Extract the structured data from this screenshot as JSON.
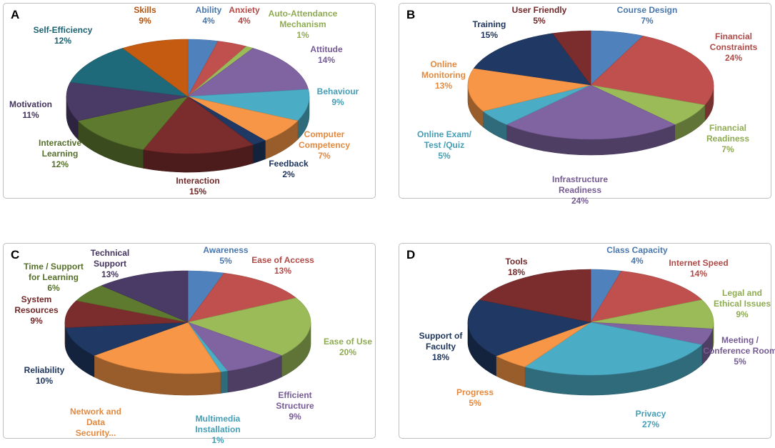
{
  "chart_data": [
    {
      "panel": "A",
      "type": "pie",
      "title": "",
      "slices": [
        {
          "label": "Ability",
          "value": 4,
          "pct": "4%",
          "color": "#4F81BD"
        },
        {
          "label": "Anxiety",
          "value": 4,
          "pct": "4%",
          "color": "#C0504D"
        },
        {
          "label": "Auto-Attendance Mechanism",
          "value": 1,
          "pct": "1%",
          "color": "#9BBB59"
        },
        {
          "label": "Attitude",
          "value": 14,
          "pct": "14%",
          "color": "#8064A2"
        },
        {
          "label": "Behaviour",
          "value": 9,
          "pct": "9%",
          "color": "#4BACC6"
        },
        {
          "label": "Computer Competency",
          "value": 7,
          "pct": "7%",
          "color": "#F79646"
        },
        {
          "label": "Feedback",
          "value": 2,
          "pct": "2%",
          "color": "#1F3864"
        },
        {
          "label": "Interaction",
          "value": 15,
          "pct": "15%",
          "color": "#7B2C2C"
        },
        {
          "label": "Interactive Learning",
          "value": 12,
          "pct": "12%",
          "color": "#5E7A2F"
        },
        {
          "label": "Motivation",
          "value": 11,
          "pct": "11%",
          "color": "#4A3A66"
        },
        {
          "label": "Self-Efficiency",
          "value": 12,
          "pct": "12%",
          "color": "#1E6A7A"
        },
        {
          "label": "Skills",
          "value": 9,
          "pct": "9%",
          "color": "#C55A11"
        }
      ]
    },
    {
      "panel": "B",
      "type": "pie",
      "title": "",
      "slices": [
        {
          "label": "Course Design",
          "value": 7,
          "pct": "7%",
          "color": "#4F81BD"
        },
        {
          "label": "Financial Constraints",
          "value": 24,
          "pct": "24%",
          "color": "#C0504D"
        },
        {
          "label": "Financial Readiness",
          "value": 7,
          "pct": "7%",
          "color": "#9BBB59"
        },
        {
          "label": "Infrastructure Readiness",
          "value": 24,
          "pct": "24%",
          "color": "#8064A2"
        },
        {
          "label": "Online Exam/ Test /Quiz",
          "value": 5,
          "pct": "5%",
          "color": "#4BACC6"
        },
        {
          "label": "Online Monitoring",
          "value": 13,
          "pct": "13%",
          "color": "#F79646"
        },
        {
          "label": "Training",
          "value": 15,
          "pct": "15%",
          "color": "#1F3864"
        },
        {
          "label": "User Friendly",
          "value": 5,
          "pct": "5%",
          "color": "#7B2C2C"
        }
      ]
    },
    {
      "panel": "C",
      "type": "pie",
      "title": "",
      "slices": [
        {
          "label": "Awareness",
          "value": 5,
          "pct": "5%",
          "color": "#4F81BD"
        },
        {
          "label": "Ease of Access",
          "value": 13,
          "pct": "13%",
          "color": "#C0504D"
        },
        {
          "label": "Ease of Use",
          "value": 20,
          "pct": "20%",
          "color": "#9BBB59"
        },
        {
          "label": "Efficient Structure",
          "value": 9,
          "pct": "9%",
          "color": "#8064A2"
        },
        {
          "label": "Multimedia Installation",
          "value": 1,
          "pct": "1%",
          "color": "#4BACC6"
        },
        {
          "label": "Network and Data Security...",
          "value": 19,
          "pct": "",
          "color": "#F79646"
        },
        {
          "label": "Reliability",
          "value": 10,
          "pct": "10%",
          "color": "#1F3864"
        },
        {
          "label": "System Resources",
          "value": 9,
          "pct": "9%",
          "color": "#7B2C2C"
        },
        {
          "label": "Time / Support for Learning",
          "value": 6,
          "pct": "6%",
          "color": "#5E7A2F"
        },
        {
          "label": "Technical Support",
          "value": 13,
          "pct": "13%",
          "color": "#4A3A66"
        }
      ]
    },
    {
      "panel": "D",
      "type": "pie",
      "title": "",
      "slices": [
        {
          "label": "Class Capacity",
          "value": 4,
          "pct": "4%",
          "color": "#4F81BD"
        },
        {
          "label": "Internet Speed",
          "value": 14,
          "pct": "14%",
          "color": "#C0504D"
        },
        {
          "label": "Legal and Ethical Issues",
          "value": 9,
          "pct": "9%",
          "color": "#9BBB59"
        },
        {
          "label": "Meeting / Conference Room",
          "value": 5,
          "pct": "5%",
          "color": "#8064A2"
        },
        {
          "label": "Privacy",
          "value": 27,
          "pct": "27%",
          "color": "#4BACC6"
        },
        {
          "label": "Progress",
          "value": 5,
          "pct": "5%",
          "color": "#F79646"
        },
        {
          "label": "Support of Faculty",
          "value": 18,
          "pct": "18%",
          "color": "#1F3864"
        },
        {
          "label": "Tools",
          "value": 18,
          "pct": "18%",
          "color": "#7B2C2C"
        }
      ]
    }
  ]
}
